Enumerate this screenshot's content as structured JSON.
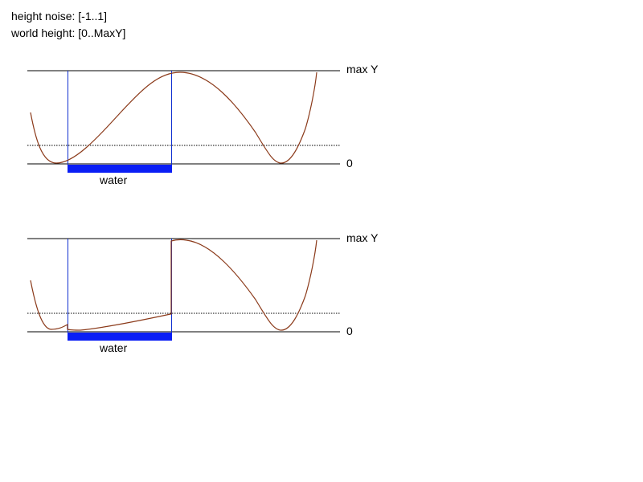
{
  "notes": {
    "height_noise": "height noise: [-1..1]",
    "world_height": "world height: [0..MaxY]"
  },
  "panels": [
    {
      "max_label": "max Y",
      "zero_label": "0",
      "water_label": "water"
    },
    {
      "max_label": "max Y",
      "zero_label": "0",
      "water_label": "water"
    }
  ],
  "colors": {
    "curve": "#8B3A1A",
    "water_bar": "#0A1EF5",
    "marker_line": "#1030D0",
    "axis_line": "#000000"
  }
}
